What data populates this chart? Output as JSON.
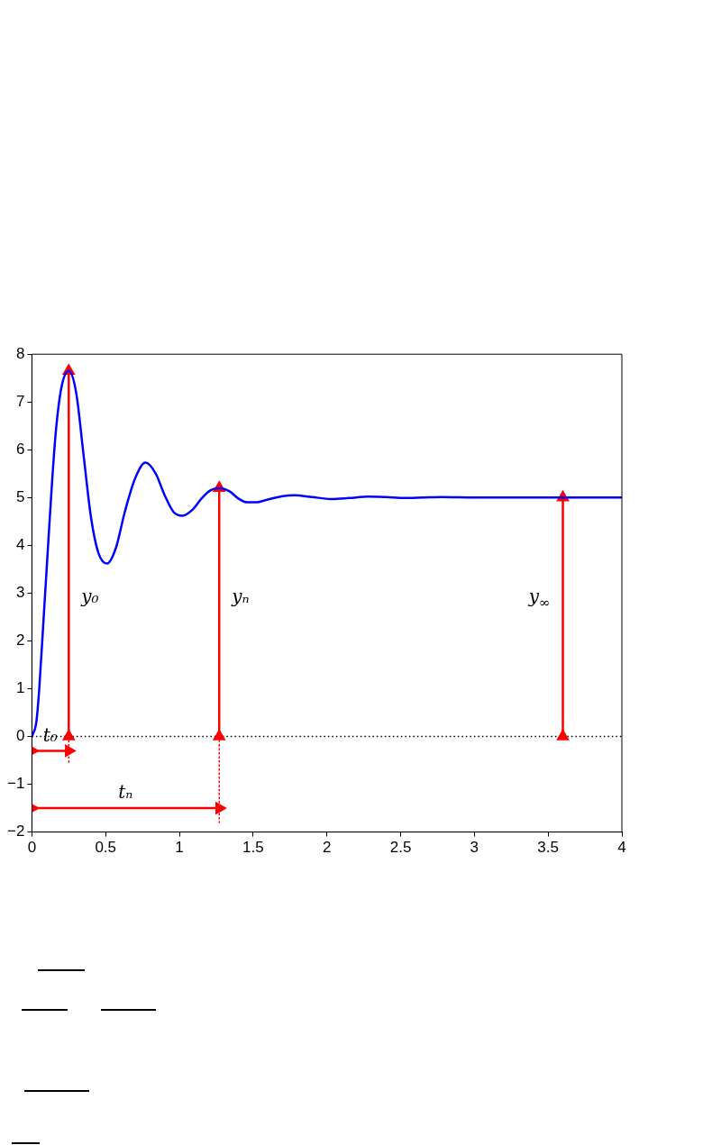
{
  "chart_data": {
    "type": "line",
    "xlim": [
      0,
      4
    ],
    "xticks": [
      0,
      0.5,
      1,
      1.5,
      2,
      2.5,
      3,
      3.5,
      4
    ],
    "ylim": [
      -2,
      8
    ],
    "yticks": [
      {
        "value": -2,
        "label": "−2"
      },
      {
        "value": -1,
        "label": "−1"
      },
      0,
      1,
      2,
      3,
      4,
      5,
      6,
      7,
      8
    ],
    "grid": false,
    "legend": false,
    "series": [
      {
        "color": "#0000ff",
        "x": [
          0,
          0.03,
          0.05,
          0.08,
          0.1,
          0.13,
          0.16,
          0.2,
          0.25,
          0.3,
          0.35,
          0.4,
          0.45,
          0.51,
          0.57,
          0.63,
          0.7,
          0.77,
          0.84,
          0.9,
          0.96,
          1.02,
          1.09,
          1.15,
          1.21,
          1.27,
          1.34,
          1.4,
          1.46,
          1.52,
          1.6,
          1.7,
          1.78,
          1.9,
          2.03,
          2.15,
          2.28,
          2.4,
          2.53,
          2.65,
          2.78,
          3,
          3.5,
          4
        ],
        "values": [
          0,
          0.3,
          1,
          2.5,
          3.5,
          5,
          6.3,
          7.3,
          7.65,
          7.2,
          5.9,
          4.6,
          3.85,
          3.62,
          3.95,
          4.7,
          5.4,
          5.73,
          5.5,
          5.05,
          4.7,
          4.62,
          4.75,
          4.98,
          5.15,
          5.2,
          5.13,
          4.98,
          4.9,
          4.9,
          4.96,
          5.03,
          5.05,
          5.01,
          4.97,
          4.99,
          5.02,
          5.01,
          4.99,
          5,
          5.01,
          5,
          5,
          5
        ]
      },
      {
        "type": "line",
        "color": "#ff0000",
        "marker": "triangle",
        "x": [
          0.25,
          0.25
        ],
        "values": [
          0,
          7.65
        ]
      },
      {
        "type": "line",
        "color": "#ff0000",
        "marker": "triangle",
        "x": [
          1.27,
          1.27
        ],
        "values": [
          0,
          5.2
        ]
      },
      {
        "type": "line",
        "color": "#ff0000",
        "marker": "triangle",
        "x": [
          3.6,
          3.6
        ],
        "values": [
          0,
          5
        ]
      },
      {
        "type": "line",
        "color": "#ff0000",
        "marker": "triangle",
        "x": [
          0,
          0.25
        ],
        "values": [
          -0.3,
          -0.3
        ]
      },
      {
        "type": "line",
        "color": "#ff0000",
        "marker": "triangle",
        "x": [
          0,
          1.27
        ],
        "values": [
          -1.5,
          -1.5
        ]
      },
      {
        "type": "line",
        "color": "#ff0000",
        "line_style": "dotted",
        "x": [
          0.25,
          0.25
        ],
        "values": [
          0,
          -0.55
        ]
      },
      {
        "type": "line",
        "color": "#ff0000",
        "line_style": "dotted",
        "x": [
          1.27,
          1.27
        ],
        "values": [
          0,
          -1.8
        ]
      }
    ],
    "ref_lines": [
      {
        "axis": "y",
        "value": 0,
        "color": "#000000",
        "line_style": "dotted"
      }
    ],
    "annotations": [
      {
        "text": "y₀",
        "x": 0.25,
        "y": 2.9
      },
      {
        "text": "yₙ",
        "x": 1.27,
        "y": 2.9
      },
      {
        "text": "y$_{∞}$",
        "x": 3.6,
        "y": 2.9
      },
      {
        "text": "t₀",
        "x": 0.125,
        "y": -0.3
      },
      {
        "text": "tₙ",
        "x": 0.635,
        "y": -1.5
      }
    ]
  }
}
